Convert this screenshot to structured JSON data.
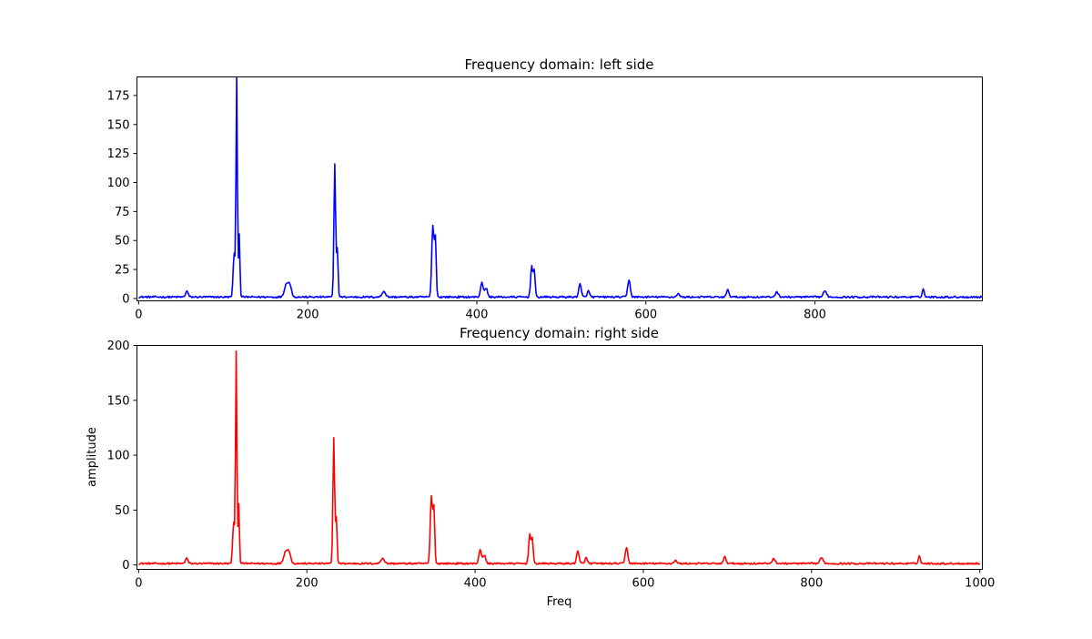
{
  "chart_data": [
    {
      "type": "line",
      "title": "Frequency domain: left side",
      "xlabel": "",
      "ylabel": "",
      "xlim": [
        -2,
        998
      ],
      "ylim": [
        -2,
        191
      ],
      "xticks": [
        0,
        200,
        400,
        600,
        800
      ],
      "yticks": [
        0,
        25,
        50,
        75,
        100,
        125,
        150,
        175
      ],
      "color": "#0000ff",
      "noise_floor": 1.3,
      "series": [
        {
          "name": "left",
          "x": [
            0,
            1000
          ],
          "peaks": [
            {
              "f": 57,
              "a": 5,
              "w": 1.5
            },
            {
              "f": 113,
              "a": 38,
              "w": 1.2
            },
            {
              "f": 116,
              "a": 190,
              "w": 0.8
            },
            {
              "f": 119,
              "a": 55,
              "w": 0.8
            },
            {
              "f": 175,
              "a": 11,
              "w": 2.5
            },
            {
              "f": 179,
              "a": 8,
              "w": 2.0
            },
            {
              "f": 232,
              "a": 114,
              "w": 1.0
            },
            {
              "f": 235,
              "a": 42,
              "w": 0.9
            },
            {
              "f": 290,
              "a": 5,
              "w": 2.0
            },
            {
              "f": 348,
              "a": 62,
              "w": 1.3
            },
            {
              "f": 351,
              "a": 50,
              "w": 1.0
            },
            {
              "f": 406,
              "a": 13,
              "w": 1.5
            },
            {
              "f": 411,
              "a": 8,
              "w": 1.5
            },
            {
              "f": 465,
              "a": 27,
              "w": 1.3
            },
            {
              "f": 468,
              "a": 22,
              "w": 1.0
            },
            {
              "f": 522,
              "a": 11,
              "w": 1.5
            },
            {
              "f": 532,
              "a": 5,
              "w": 1.5
            },
            {
              "f": 580,
              "a": 15,
              "w": 1.5
            },
            {
              "f": 638,
              "a": 3,
              "w": 1.5
            },
            {
              "f": 697,
              "a": 6,
              "w": 1.5
            },
            {
              "f": 755,
              "a": 4,
              "w": 2.0
            },
            {
              "f": 812,
              "a": 5,
              "w": 2.0
            },
            {
              "f": 928,
              "a": 7,
              "w": 1.2
            }
          ]
        }
      ]
    },
    {
      "type": "line",
      "title": "Frequency domain: right side",
      "xlabel": "Freq",
      "ylabel": "amplitude",
      "xlim": [
        -2,
        1003
      ],
      "ylim": [
        -4,
        200
      ],
      "xticks": [
        0,
        200,
        400,
        600,
        800,
        1000
      ],
      "yticks": [
        0,
        50,
        100,
        150,
        200
      ],
      "color": "#ff0000",
      "noise_floor": 1.3,
      "series": [
        {
          "name": "right",
          "x": [
            0,
            1000
          ],
          "peaks": [
            {
              "f": 57,
              "a": 5,
              "w": 1.5
            },
            {
              "f": 113,
              "a": 38,
              "w": 1.2
            },
            {
              "f": 116,
              "a": 191,
              "w": 0.8
            },
            {
              "f": 119,
              "a": 55,
              "w": 0.8
            },
            {
              "f": 175,
              "a": 11,
              "w": 2.5
            },
            {
              "f": 179,
              "a": 8,
              "w": 2.0
            },
            {
              "f": 232,
              "a": 114,
              "w": 1.0
            },
            {
              "f": 235,
              "a": 42,
              "w": 0.9
            },
            {
              "f": 290,
              "a": 5,
              "w": 2.0
            },
            {
              "f": 348,
              "a": 62,
              "w": 1.3
            },
            {
              "f": 351,
              "a": 50,
              "w": 1.0
            },
            {
              "f": 406,
              "a": 13,
              "w": 1.5
            },
            {
              "f": 411,
              "a": 8,
              "w": 1.5
            },
            {
              "f": 465,
              "a": 27,
              "w": 1.3
            },
            {
              "f": 468,
              "a": 22,
              "w": 1.0
            },
            {
              "f": 522,
              "a": 11,
              "w": 1.5
            },
            {
              "f": 532,
              "a": 5,
              "w": 1.5
            },
            {
              "f": 580,
              "a": 15,
              "w": 1.5
            },
            {
              "f": 638,
              "a": 3,
              "w": 1.5
            },
            {
              "f": 697,
              "a": 6,
              "w": 1.5
            },
            {
              "f": 755,
              "a": 4,
              "w": 2.0
            },
            {
              "f": 812,
              "a": 5,
              "w": 2.0
            },
            {
              "f": 928,
              "a": 7,
              "w": 1.2
            }
          ]
        }
      ]
    }
  ]
}
